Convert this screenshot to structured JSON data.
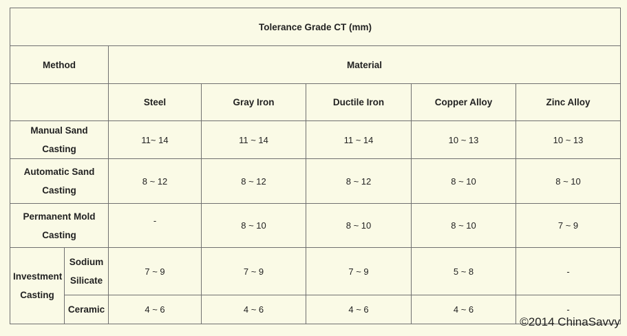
{
  "title": "Tolerance Grade CT (mm)",
  "header": {
    "method": "Method",
    "material": "Material",
    "materials": [
      "Steel",
      "Gray Iron",
      "Ductile Iron",
      "Copper Alloy",
      "Zinc Alloy"
    ]
  },
  "rows": [
    {
      "method": "Manual Sand Casting",
      "values": [
        "11~ 14",
        "11 ~ 14",
        "11 ~ 14",
        "10 ~ 13",
        "10 ~ 13"
      ]
    },
    {
      "method_line1": "Automatic Sand",
      "method_line2": "Casting",
      "values": [
        "8 ~ 12",
        "8 ~ 12",
        "8 ~ 12",
        "8 ~ 10",
        "8 ~ 10"
      ]
    },
    {
      "method_line1": "Permanent Mold",
      "method_line2": "Casting",
      "values": [
        "-",
        "8 ~ 10",
        "8 ~ 10",
        "8 ~ 10",
        "7 ~ 9"
      ]
    }
  ],
  "investment": {
    "label_line1": "Investment",
    "label_line2": "Casting",
    "sub": [
      {
        "label_line1": "Sodium",
        "label_line2": "Silicate",
        "values": [
          "7 ~ 9",
          "7 ~ 9",
          "7 ~ 9",
          "5 ~ 8",
          "-"
        ]
      },
      {
        "label": "Ceramic",
        "values": [
          "4 ~ 6",
          "4 ~ 6",
          "4 ~ 6",
          "4 ~ 6",
          "-"
        ]
      }
    ]
  },
  "copyright": "©2014 ChinaSavvy"
}
